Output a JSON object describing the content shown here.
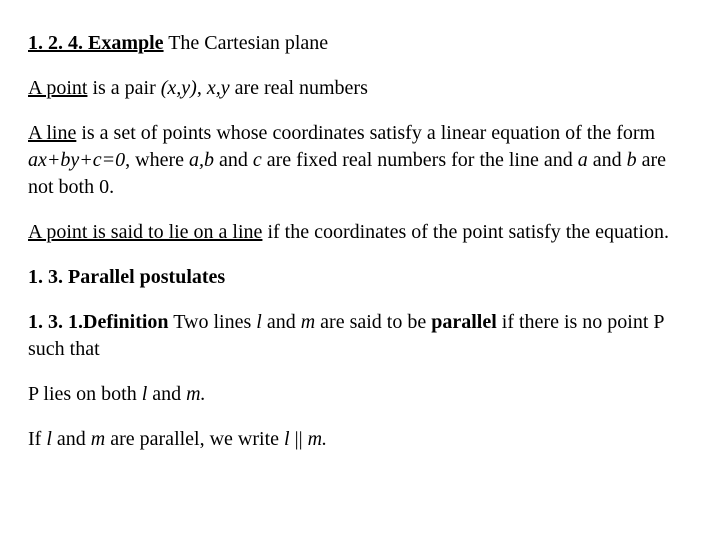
{
  "p1": {
    "a": "1. 2. 4. Example",
    "b": "   The Cartesian plane"
  },
  "p2": {
    "a": " A  point",
    "b": " is a   pair ",
    "c": "(x,y)",
    "d": ", ",
    "e": "x,y",
    "f": " are real numbers"
  },
  "p3": {
    "a": " A line",
    "b": " is a set of points whose coordinates satisfy a linear equation of the form  ",
    "c": "ax+by+c=0",
    "d": ", where ",
    "e": "a,b",
    "f": " and ",
    "g": "c",
    "h": " are fixed real numbers for the line and ",
    "i": "a",
    "j": " and ",
    "k": "b",
    "l": " are not both 0."
  },
  "p4": {
    "a": " A point is said to lie on a line",
    "b": " if the coordinates of the point satisfy the equation."
  },
  "p5": "1. 3. Parallel postulates",
  "p6": {
    "a": "1. 3. 1.Definition",
    "b": "  Two lines ",
    "c": "l",
    "d": " and ",
    "e": "m",
    "f": " are said to be ",
    "g": "parallel",
    "h": " if there is no point P such that"
  },
  "p7": {
    "a": " P  lies on both ",
    "b": "l",
    "c": " and ",
    "d": "m."
  },
  "p8": {
    "a": " If  ",
    "b": "l ",
    "c": "and ",
    "d": "m",
    "e": " are parallel, we write  ",
    "f": "l",
    "g": " || ",
    "h": "m."
  }
}
